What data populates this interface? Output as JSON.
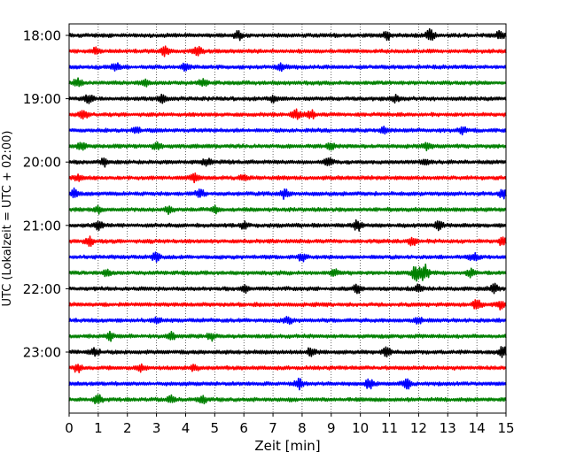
{
  "chart_data": {
    "type": "line",
    "title": "",
    "xlabel": "Zeit  [min]",
    "ylabel": "UTC (Lokalzeit = UTC + 02:00)",
    "xlim": [
      0,
      15
    ],
    "x_ticks": [
      "0",
      "1",
      "2",
      "3",
      "4",
      "5",
      "6",
      "7",
      "8",
      "9",
      "10",
      "11",
      "12",
      "13",
      "14",
      "15"
    ],
    "y_tick_labels": [
      "18:00",
      "19:00",
      "20:00",
      "21:00",
      "22:00",
      "23:00"
    ],
    "grid": "vertical dotted lines at each minute",
    "trace_colors": [
      "#000000",
      "#ff0000",
      "#0000ff",
      "#008000"
    ],
    "traces": [
      {
        "start": "18:00",
        "color": "#000000",
        "bursts": [
          {
            "t": 5.8,
            "a": 0.5
          },
          {
            "t": 10.9,
            "a": 0.45
          },
          {
            "t": 12.4,
            "a": 0.7
          },
          {
            "t": 14.8,
            "a": 0.4
          }
        ]
      },
      {
        "start": "18:15",
        "color": "#ff0000",
        "bursts": [
          {
            "t": 0.9,
            "a": 0.4
          },
          {
            "t": 3.3,
            "a": 0.5
          },
          {
            "t": 4.4,
            "a": 0.6
          }
        ]
      },
      {
        "start": "18:30",
        "color": "#0000ff",
        "bursts": [
          {
            "t": 1.6,
            "a": 0.4
          },
          {
            "t": 4.0,
            "a": 0.45
          },
          {
            "t": 7.3,
            "a": 0.4
          }
        ]
      },
      {
        "start": "18:45",
        "color": "#008000",
        "bursts": [
          {
            "t": 0.3,
            "a": 0.5
          },
          {
            "t": 2.6,
            "a": 0.4
          },
          {
            "t": 4.6,
            "a": 0.35
          }
        ]
      },
      {
        "start": "19:00",
        "color": "#000000",
        "bursts": [
          {
            "t": 0.7,
            "a": 0.5
          },
          {
            "t": 3.2,
            "a": 0.4
          },
          {
            "t": 7.0,
            "a": 0.4
          },
          {
            "t": 11.2,
            "a": 0.4
          }
        ]
      },
      {
        "start": "19:15",
        "color": "#ff0000",
        "bursts": [
          {
            "t": 0.5,
            "a": 0.5
          },
          {
            "t": 7.8,
            "a": 0.55
          },
          {
            "t": 8.3,
            "a": 0.5
          }
        ]
      },
      {
        "start": "19:30",
        "color": "#0000ff",
        "bursts": [
          {
            "t": 2.3,
            "a": 0.4
          },
          {
            "t": 10.8,
            "a": 0.35
          },
          {
            "t": 13.5,
            "a": 0.35
          }
        ]
      },
      {
        "start": "19:45",
        "color": "#008000",
        "bursts": [
          {
            "t": 0.4,
            "a": 0.45
          },
          {
            "t": 3.0,
            "a": 0.4
          },
          {
            "t": 9.0,
            "a": 0.45
          },
          {
            "t": 12.3,
            "a": 0.4
          }
        ]
      },
      {
        "start": "20:00",
        "color": "#000000",
        "bursts": [
          {
            "t": 1.2,
            "a": 0.45
          },
          {
            "t": 4.7,
            "a": 0.4
          },
          {
            "t": 8.9,
            "a": 0.4
          },
          {
            "t": 12.2,
            "a": 0.4
          }
        ]
      },
      {
        "start": "20:15",
        "color": "#ff0000",
        "bursts": [
          {
            "t": 0.3,
            "a": 0.4
          },
          {
            "t": 4.3,
            "a": 0.45
          },
          {
            "t": 6.0,
            "a": 0.4
          }
        ]
      },
      {
        "start": "20:30",
        "color": "#0000ff",
        "bursts": [
          {
            "t": 0.2,
            "a": 0.5
          },
          {
            "t": 4.5,
            "a": 0.45
          },
          {
            "t": 7.4,
            "a": 0.5
          },
          {
            "t": 14.9,
            "a": 0.45
          }
        ]
      },
      {
        "start": "20:45",
        "color": "#008000",
        "bursts": [
          {
            "t": 1.0,
            "a": 0.4
          },
          {
            "t": 3.4,
            "a": 0.4
          },
          {
            "t": 5.0,
            "a": 0.35
          }
        ]
      },
      {
        "start": "21:00",
        "color": "#000000",
        "bursts": [
          {
            "t": 1.0,
            "a": 0.5
          },
          {
            "t": 6.0,
            "a": 0.4
          },
          {
            "t": 9.9,
            "a": 0.6
          },
          {
            "t": 12.7,
            "a": 0.55
          }
        ]
      },
      {
        "start": "21:15",
        "color": "#ff0000",
        "bursts": [
          {
            "t": 0.7,
            "a": 0.45
          },
          {
            "t": 11.8,
            "a": 0.55
          },
          {
            "t": 14.9,
            "a": 0.5
          }
        ]
      },
      {
        "start": "21:30",
        "color": "#0000ff",
        "bursts": [
          {
            "t": 3.0,
            "a": 0.5
          },
          {
            "t": 8.0,
            "a": 0.4
          },
          {
            "t": 13.9,
            "a": 0.45
          }
        ]
      },
      {
        "start": "21:45",
        "color": "#008000",
        "bursts": [
          {
            "t": 1.3,
            "a": 0.4
          },
          {
            "t": 9.1,
            "a": 0.35
          },
          {
            "t": 11.9,
            "a": 0.9
          },
          {
            "t": 12.2,
            "a": 1.0
          },
          {
            "t": 13.8,
            "a": 0.45
          }
        ]
      },
      {
        "start": "22:00",
        "color": "#000000",
        "bursts": [
          {
            "t": 6.0,
            "a": 0.5
          },
          {
            "t": 9.9,
            "a": 0.55
          },
          {
            "t": 12.0,
            "a": 0.45
          },
          {
            "t": 14.6,
            "a": 0.5
          }
        ]
      },
      {
        "start": "22:15",
        "color": "#ff0000",
        "bursts": [
          {
            "t": 14.0,
            "a": 0.55
          },
          {
            "t": 14.8,
            "a": 0.5
          }
        ]
      },
      {
        "start": "22:30",
        "color": "#0000ff",
        "bursts": [
          {
            "t": 3.0,
            "a": 0.4
          },
          {
            "t": 7.5,
            "a": 0.4
          },
          {
            "t": 12.0,
            "a": 0.4
          }
        ]
      },
      {
        "start": "22:45",
        "color": "#008000",
        "bursts": [
          {
            "t": 1.4,
            "a": 0.4
          },
          {
            "t": 3.5,
            "a": 0.4
          },
          {
            "t": 4.9,
            "a": 0.45
          }
        ]
      },
      {
        "start": "23:00",
        "color": "#000000",
        "bursts": [
          {
            "t": 0.9,
            "a": 0.45
          },
          {
            "t": 8.3,
            "a": 0.5
          },
          {
            "t": 10.9,
            "a": 0.5
          },
          {
            "t": 14.9,
            "a": 0.55
          }
        ]
      },
      {
        "start": "23:15",
        "color": "#ff0000",
        "bursts": [
          {
            "t": 0.3,
            "a": 0.45
          },
          {
            "t": 2.5,
            "a": 0.35
          },
          {
            "t": 4.3,
            "a": 0.35
          }
        ]
      },
      {
        "start": "23:30",
        "color": "#0000ff",
        "bursts": [
          {
            "t": 7.9,
            "a": 0.6
          },
          {
            "t": 10.3,
            "a": 0.55
          },
          {
            "t": 11.6,
            "a": 0.5
          }
        ]
      },
      {
        "start": "23:45",
        "color": "#008000",
        "bursts": [
          {
            "t": 1.0,
            "a": 0.5
          },
          {
            "t": 3.5,
            "a": 0.35
          },
          {
            "t": 4.6,
            "a": 0.35
          }
        ]
      }
    ]
  }
}
